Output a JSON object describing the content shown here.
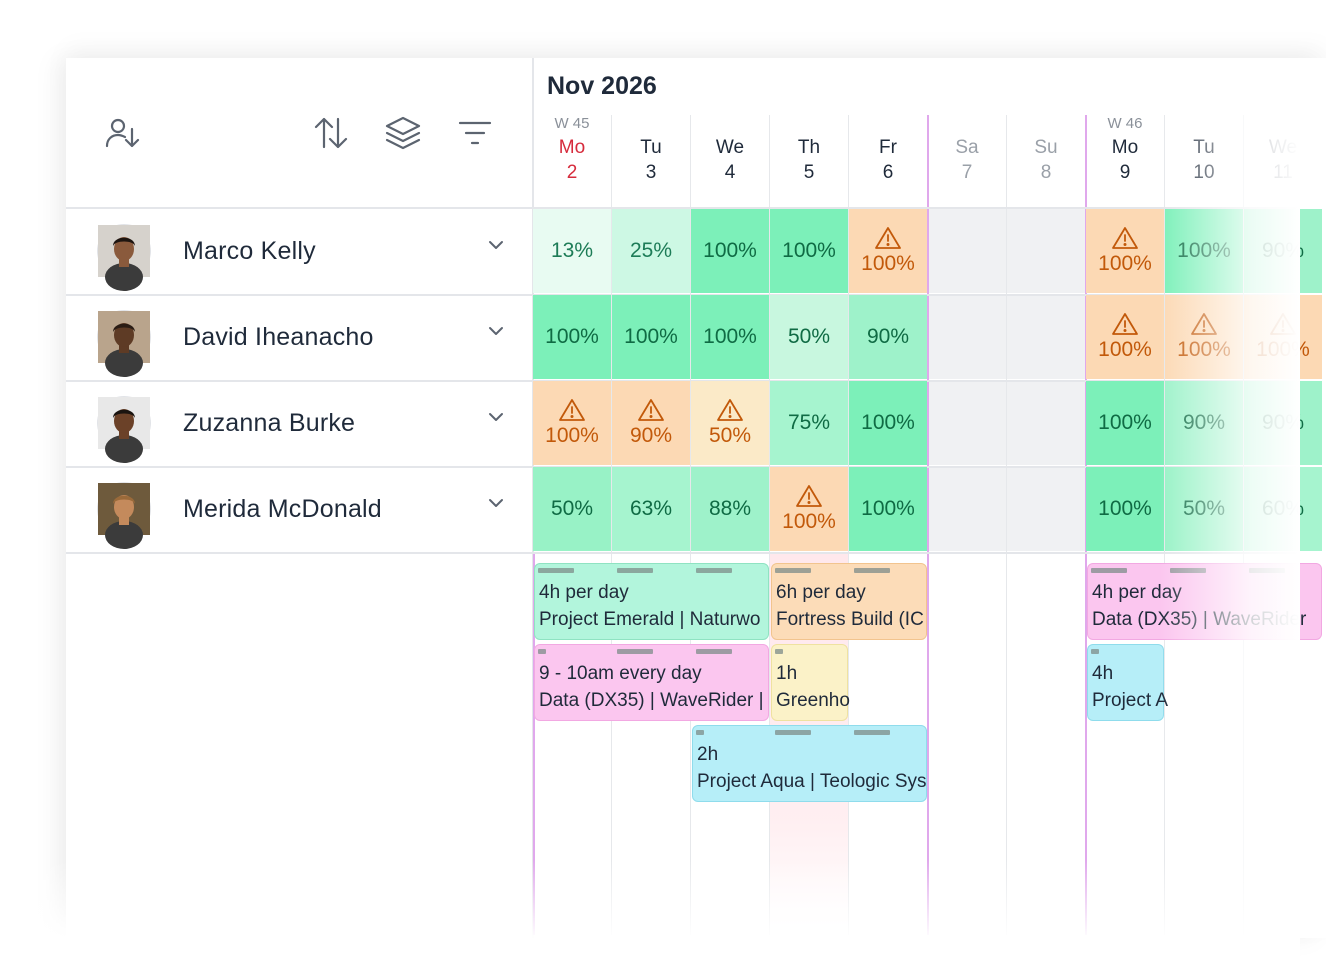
{
  "calendar": {
    "month_label": "Nov 2026",
    "weeks": [
      {
        "label": "W 45",
        "day_index": 0
      },
      {
        "label": "W 46",
        "day_index": 7
      }
    ],
    "days": [
      {
        "name": "Mo",
        "num": "2",
        "kind": "today"
      },
      {
        "name": "Tu",
        "num": "3",
        "kind": "weekday"
      },
      {
        "name": "We",
        "num": "4",
        "kind": "weekday"
      },
      {
        "name": "Th",
        "num": "5",
        "kind": "weekday"
      },
      {
        "name": "Fr",
        "num": "6",
        "kind": "weekday"
      },
      {
        "name": "Sa",
        "num": "7",
        "kind": "weekend"
      },
      {
        "name": "Su",
        "num": "8",
        "kind": "weekend"
      },
      {
        "name": "Mo",
        "num": "9",
        "kind": "weekday"
      },
      {
        "name": "Tu",
        "num": "10",
        "kind": "weekday"
      },
      {
        "name": "We",
        "num": "11",
        "kind": "weekday"
      }
    ]
  },
  "toolbar": {
    "icons": [
      "person-sort-icon",
      "sort-arrows-icon",
      "layers-icon",
      "filter-icon"
    ]
  },
  "people": [
    {
      "name": "Marco Kelly",
      "avatar_skin": "#8a5a3c",
      "avatar_hair": "#1e1510",
      "avatar_bg": "#d6d2cc"
    },
    {
      "name": "David Iheanacho",
      "avatar_skin": "#5e3b25",
      "avatar_hair": "#2a1c14",
      "avatar_bg": "#b9a48c"
    },
    {
      "name": "Zuzanna Burke",
      "avatar_skin": "#6b4128",
      "avatar_hair": "#1a1410",
      "avatar_bg": "#e8e8e8"
    },
    {
      "name": "Merida McDonald",
      "avatar_skin": "#c48a5c",
      "avatar_hair": "#9a6a3a",
      "avatar_bg": "#6e5a3c"
    }
  ],
  "utilization": [
    [
      "13%",
      "25%",
      "100%",
      "100%",
      "100%",
      null,
      null,
      "100%",
      "100%",
      "90%"
    ],
    [
      "100%",
      "100%",
      "100%",
      "50%",
      "90%",
      null,
      null,
      "100%",
      "100%",
      "100%"
    ],
    [
      "100%",
      "90%",
      "50%",
      "75%",
      "100%",
      null,
      null,
      "100%",
      "90%",
      "90%"
    ],
    [
      "50%",
      "63%",
      "88%",
      "100%",
      "100%",
      null,
      null,
      "100%",
      "50%",
      "60%"
    ]
  ],
  "utilization_state": [
    [
      "low",
      "low",
      "full",
      "full",
      "over",
      null,
      null,
      "over",
      "full",
      "full"
    ],
    [
      "full",
      "full",
      "full",
      "mid",
      "full",
      null,
      null,
      "over",
      "over",
      "over"
    ],
    [
      "over",
      "over",
      "over-light",
      "full",
      "full",
      null,
      null,
      "full",
      "full",
      "full"
    ],
    [
      "full",
      "full",
      "full",
      "over",
      "full",
      null,
      null,
      "full",
      "full",
      "full"
    ]
  ],
  "bookings": [
    {
      "line1": "4h per day",
      "line2": "Project Emerald | Naturwo",
      "color": "#b2f5dc",
      "border": "#8fe3c2",
      "start": 0,
      "span": 3,
      "lane": 0
    },
    {
      "line1": "6h per day",
      "line2": "Fortress Build (IC",
      "color": "#fcdcb8",
      "border": "#f2c48e",
      "start": 3,
      "span": 2,
      "lane": 0
    },
    {
      "line1": "4h per day",
      "line2": "Data (DX35) | WaveRider",
      "color": "#fbc6ef",
      "border": "#f2a8e2",
      "start": 7,
      "span": 3,
      "lane": 0
    },
    {
      "line1": "9 - 10am every day",
      "line2": "Data (DX35) | WaveRider |",
      "color": "#fbc6ef",
      "border": "#f2a8e2",
      "start": 0,
      "span": 3,
      "lane": 1
    },
    {
      "line1": "1h",
      "line2": "Greenho",
      "color": "#fbf2c8",
      "border": "#efe2a0",
      "start": 3,
      "span": 1,
      "lane": 1
    },
    {
      "line1": "4h",
      "line2": "Project A",
      "color": "#b6eef8",
      "border": "#8fdcec",
      "start": 7,
      "span": 1,
      "lane": 1
    },
    {
      "line1": "2h",
      "line2": "Project Aqua | Teologic Sys",
      "color": "#b6eef8",
      "border": "#8fdcec",
      "start": 2,
      "span": 3,
      "lane": 2
    }
  ],
  "colors": {
    "today_red": "#d62b3c",
    "weekend_text": "#9aa0a8",
    "over_text": "#c2590a",
    "full_text": "#0f6b44",
    "low_text": "#1d7c57"
  }
}
